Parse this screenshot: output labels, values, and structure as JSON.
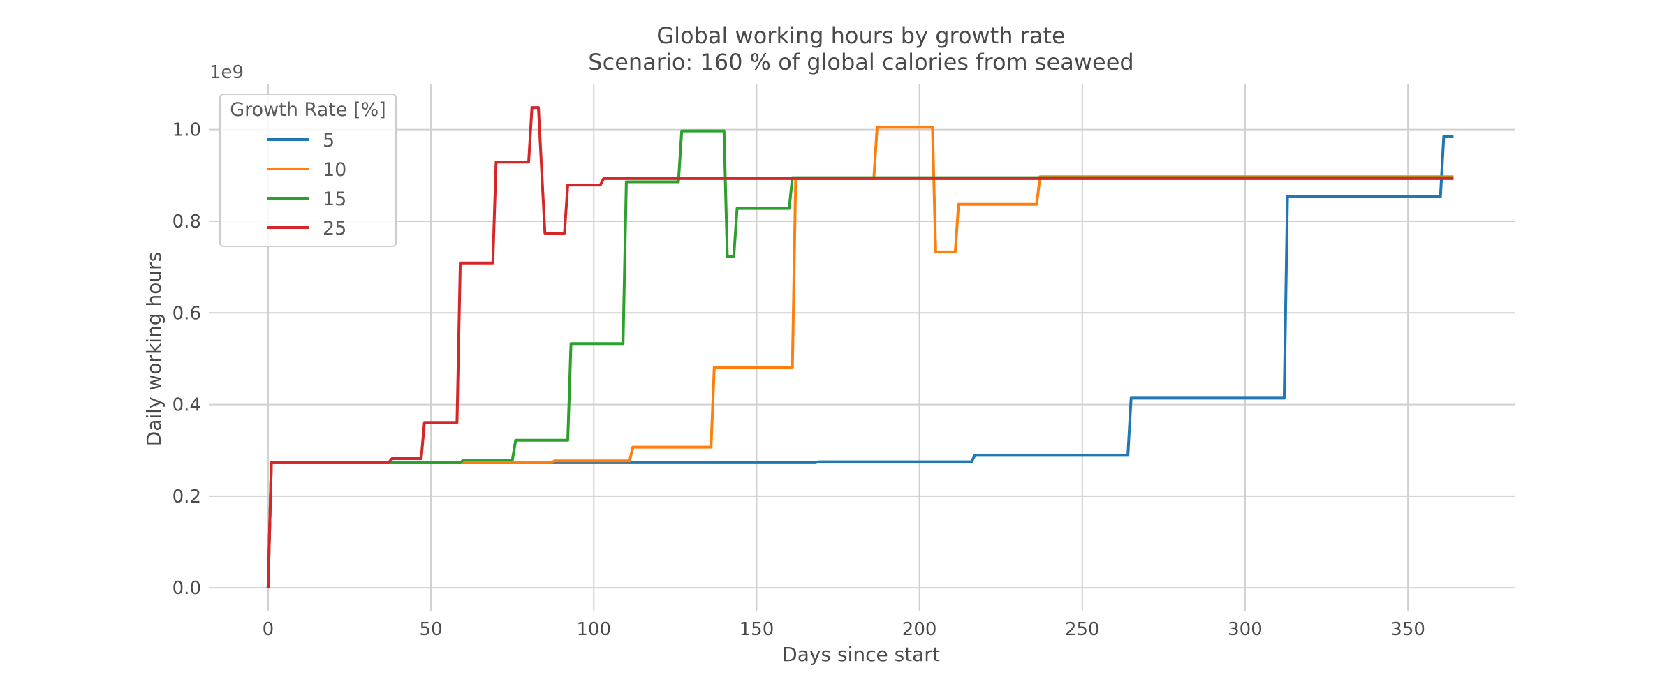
{
  "chart_data": {
    "type": "line",
    "title": "Global working hours by growth rate",
    "subtitle": "Scenario: 160 % of global calories from seaweed",
    "xlabel": "Days since start",
    "ylabel": "Daily working hours",
    "y_offset_label": "1e9",
    "xlim": [
      -18,
      383
    ],
    "ylim": [
      -0.05,
      1.1
    ],
    "x_ticks": [
      0,
      50,
      100,
      150,
      200,
      250,
      300,
      350
    ],
    "y_ticks": [
      0.0,
      0.2,
      0.4,
      0.6,
      0.8,
      1.0
    ],
    "x_tick_labels": [
      "0",
      "50",
      "100",
      "150",
      "200",
      "250",
      "300",
      "350"
    ],
    "y_tick_labels": [
      "0.0",
      "0.2",
      "0.4",
      "0.6",
      "0.8",
      "1.0"
    ],
    "grid": true,
    "legend": {
      "title": "Growth Rate [%]",
      "placement": "upper-left"
    },
    "series": [
      {
        "name": "5",
        "color": "#1f77b4",
        "points": [
          [
            0,
            0
          ],
          [
            1,
            0.273
          ],
          [
            168,
            0.273
          ],
          [
            169,
            0.275
          ],
          [
            216,
            0.275
          ],
          [
            217,
            0.289
          ],
          [
            264,
            0.289
          ],
          [
            265,
            0.414
          ],
          [
            312,
            0.414
          ],
          [
            313,
            0.854
          ],
          [
            360,
            0.854
          ],
          [
            361,
            0.985
          ],
          [
            364,
            0.985
          ]
        ]
      },
      {
        "name": "10",
        "color": "#ff7f0e",
        "points": [
          [
            0,
            0
          ],
          [
            1,
            0.273
          ],
          [
            87,
            0.273
          ],
          [
            88,
            0.277
          ],
          [
            111,
            0.277
          ],
          [
            112,
            0.307
          ],
          [
            136,
            0.307
          ],
          [
            137,
            0.481
          ],
          [
            161,
            0.481
          ],
          [
            162,
            0.893
          ],
          [
            186,
            0.893
          ],
          [
            187,
            1.005
          ],
          [
            204,
            1.005
          ],
          [
            205,
            0.733
          ],
          [
            211,
            0.733
          ],
          [
            212,
            0.837
          ],
          [
            236,
            0.837
          ],
          [
            237,
            0.897
          ],
          [
            364,
            0.897
          ]
        ]
      },
      {
        "name": "15",
        "color": "#2ca02c",
        "points": [
          [
            0,
            0
          ],
          [
            1,
            0.273
          ],
          [
            59,
            0.273
          ],
          [
            60,
            0.279
          ],
          [
            75,
            0.279
          ],
          [
            76,
            0.322
          ],
          [
            92,
            0.322
          ],
          [
            93,
            0.533
          ],
          [
            109,
            0.533
          ],
          [
            110,
            0.886
          ],
          [
            126,
            0.886
          ],
          [
            127,
            0.997
          ],
          [
            140,
            0.997
          ],
          [
            141,
            0.723
          ],
          [
            143,
            0.723
          ],
          [
            144,
            0.828
          ],
          [
            160,
            0.828
          ],
          [
            161,
            0.895
          ],
          [
            364,
            0.895
          ]
        ]
      },
      {
        "name": "25",
        "color": "#d62728",
        "points": [
          [
            0,
            0
          ],
          [
            1,
            0.273
          ],
          [
            37,
            0.273
          ],
          [
            38,
            0.282
          ],
          [
            47,
            0.282
          ],
          [
            48,
            0.361
          ],
          [
            58,
            0.361
          ],
          [
            59,
            0.709
          ],
          [
            69,
            0.709
          ],
          [
            70,
            0.929
          ],
          [
            80,
            0.929
          ],
          [
            81,
            1.048
          ],
          [
            83,
            1.048
          ],
          [
            85,
            0.774
          ],
          [
            91,
            0.774
          ],
          [
            92,
            0.879
          ],
          [
            102,
            0.879
          ],
          [
            103,
            0.893
          ],
          [
            364,
            0.893
          ]
        ]
      }
    ]
  }
}
